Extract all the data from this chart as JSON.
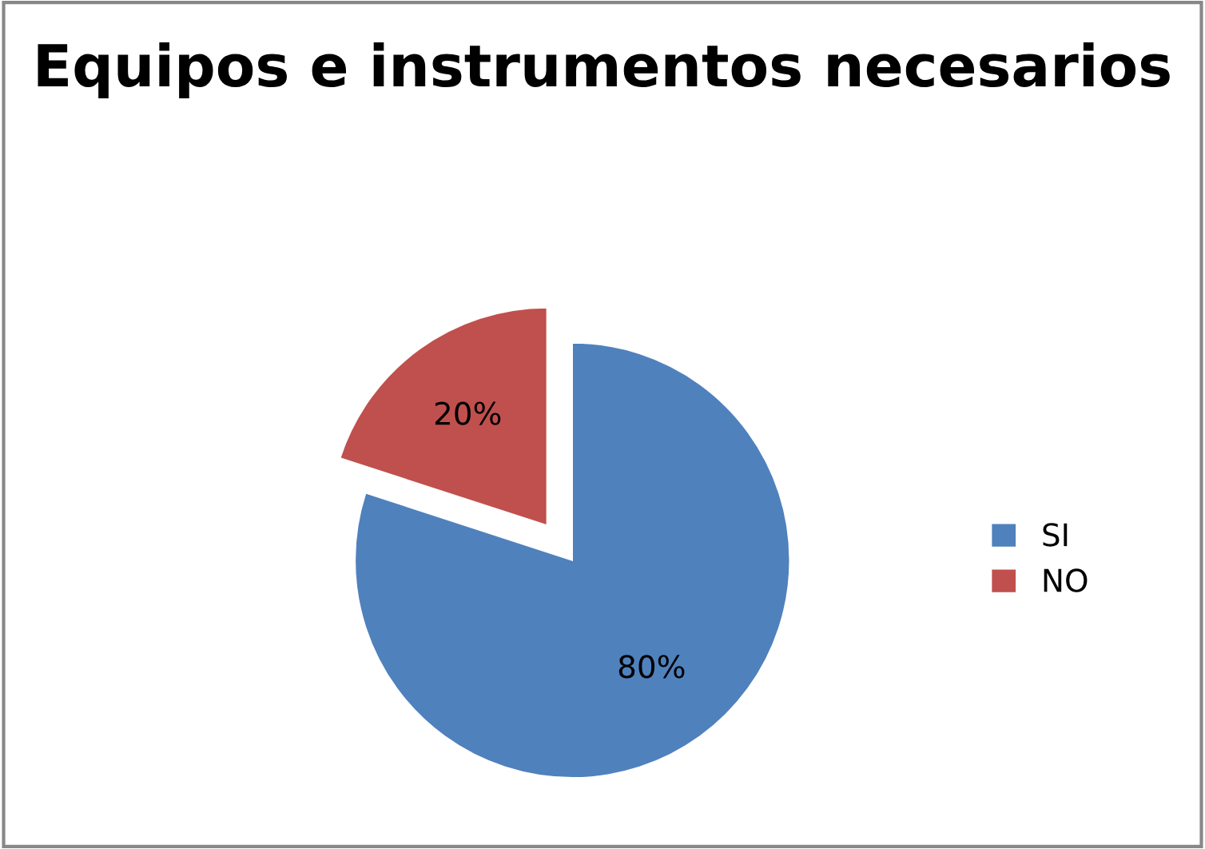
{
  "chart_data": {
    "type": "pie",
    "title": "Equipos e instrumentos necesarios",
    "categories": [
      "SI",
      "NO"
    ],
    "values": [
      80,
      20
    ],
    "colors": [
      "#4f81bd",
      "#c0504d"
    ],
    "value_labels": [
      "80%",
      "20%"
    ],
    "legend": "right"
  }
}
